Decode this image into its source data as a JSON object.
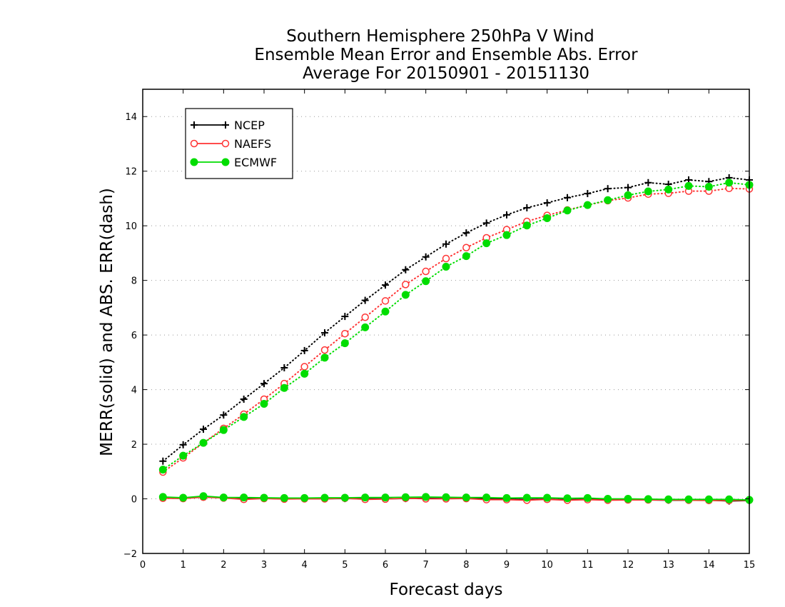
{
  "chart_data": {
    "type": "line",
    "title_lines": [
      "Southern Hemisphere 250hPa V Wind",
      "Ensemble Mean Error and Ensemble Abs. Error",
      "Average For 20150901 - 20151130"
    ],
    "xlabel": "Forecast days",
    "ylabel": "MERR(solid) and ABS. ERR(dash)",
    "xlim": [
      0,
      15
    ],
    "ylim": [
      -2,
      15
    ],
    "xticks": [
      0,
      1,
      2,
      3,
      4,
      5,
      6,
      7,
      8,
      9,
      10,
      11,
      12,
      13,
      14,
      15
    ],
    "yticks": [
      -2,
      0,
      2,
      4,
      6,
      8,
      10,
      12,
      14
    ],
    "grid": "horizontal dotted",
    "legend_position": "top-left",
    "x": [
      0.5,
      1,
      1.5,
      2,
      2.5,
      3,
      3.5,
      4,
      4.5,
      5,
      5.5,
      6,
      6.5,
      7,
      7.5,
      8,
      8.5,
      9,
      9.5,
      10,
      10.5,
      11,
      11.5,
      12,
      12.5,
      13,
      13.5,
      14,
      14.5,
      15
    ],
    "series": [
      {
        "name": "NCEP",
        "color": "#000000",
        "marker": "plus",
        "abs_error": [
          1.38,
          1.98,
          2.55,
          3.07,
          3.65,
          4.22,
          4.8,
          5.43,
          6.08,
          6.68,
          7.27,
          7.83,
          8.39,
          8.86,
          9.33,
          9.74,
          10.1,
          10.4,
          10.66,
          10.84,
          11.03,
          11.18,
          11.36,
          11.4,
          11.58,
          11.52,
          11.68,
          11.62,
          11.76,
          11.68
        ],
        "mean_error": [
          0.05,
          0.03,
          0.08,
          0.04,
          0.02,
          0.02,
          0.0,
          0.0,
          0.0,
          0.01,
          0.0,
          0.0,
          0.01,
          0.02,
          0.01,
          0.02,
          0.0,
          -0.01,
          -0.02,
          -0.01,
          -0.03,
          -0.02,
          -0.03,
          -0.03,
          -0.04,
          -0.05,
          -0.05,
          -0.05,
          -0.08,
          -0.06
        ]
      },
      {
        "name": "NAEFS",
        "color": "#ff3333",
        "marker": "open-circle",
        "abs_error": [
          0.98,
          1.5,
          2.05,
          2.58,
          3.1,
          3.65,
          4.22,
          4.84,
          5.45,
          6.05,
          6.65,
          7.25,
          7.85,
          8.33,
          8.8,
          9.2,
          9.56,
          9.86,
          10.16,
          10.38,
          10.58,
          10.76,
          10.92,
          11.02,
          11.16,
          11.19,
          11.27,
          11.27,
          11.37,
          11.35
        ],
        "mean_error": [
          0.02,
          0.01,
          0.06,
          0.03,
          -0.02,
          0.01,
          -0.01,
          0.0,
          0.0,
          0.02,
          -0.02,
          -0.01,
          0.02,
          0.0,
          0.0,
          0.01,
          -0.03,
          -0.03,
          -0.05,
          -0.02,
          -0.05,
          -0.03,
          -0.05,
          -0.04,
          -0.04,
          -0.04,
          -0.05,
          -0.06,
          -0.06,
          -0.05
        ]
      },
      {
        "name": "ECMWF",
        "color": "#00dd00",
        "marker": "filled-circle",
        "abs_error": [
          1.07,
          1.58,
          2.05,
          2.52,
          3.0,
          3.48,
          4.06,
          4.58,
          5.17,
          5.7,
          6.28,
          6.86,
          7.47,
          7.97,
          8.5,
          8.89,
          9.36,
          9.66,
          10.01,
          10.28,
          10.56,
          10.76,
          10.94,
          11.12,
          11.26,
          11.33,
          11.46,
          11.43,
          11.58,
          11.5
        ],
        "mean_error": [
          0.07,
          0.04,
          0.1,
          0.05,
          0.05,
          0.04,
          0.03,
          0.03,
          0.04,
          0.04,
          0.05,
          0.05,
          0.06,
          0.07,
          0.06,
          0.05,
          0.05,
          0.03,
          0.04,
          0.04,
          0.02,
          0.03,
          0.0,
          0.0,
          -0.01,
          -0.02,
          -0.02,
          -0.02,
          -0.02,
          -0.04
        ]
      }
    ]
  }
}
